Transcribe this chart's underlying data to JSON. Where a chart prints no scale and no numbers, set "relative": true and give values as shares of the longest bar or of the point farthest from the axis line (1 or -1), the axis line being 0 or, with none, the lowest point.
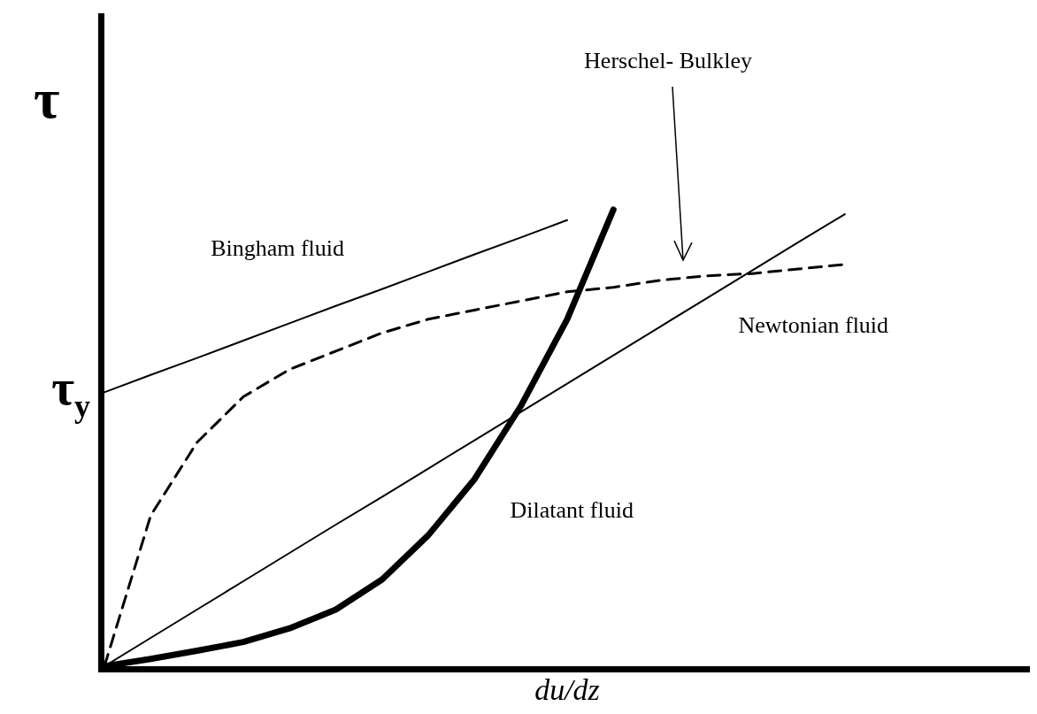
{
  "chart_data": {
    "type": "line",
    "relative": true,
    "xlabel": "du/dz",
    "ylabel": "τ",
    "tick_labels": false,
    "marker": "none",
    "annotations": [
      "τ$_{y}$"
    ],
    "categories": [
      null,
      null,
      null,
      null,
      null,
      null,
      null,
      null,
      null,
      null,
      null,
      null,
      null,
      null,
      null,
      null,
      null,
      null,
      null,
      null,
      null
    ],
    "series": [
      {
        "name": "Bingham fluid",
        "color": "#000000",
        "line_style": "solid",
        "values": [
          0.6,
          0.638,
          0.675,
          0.713,
          0.751,
          0.789,
          0.826,
          0.864,
          0.902,
          0.939,
          0.977,
          null,
          null,
          null,
          null,
          null,
          null,
          null,
          null,
          null,
          null
        ]
      },
      {
        "name": "Newtonian fluid",
        "color": "#000000",
        "line_style": "solid",
        "values": [
          0,
          0.062,
          0.124,
          0.186,
          0.248,
          0.31,
          0.371,
          0.433,
          0.495,
          0.557,
          0.619,
          0.681,
          0.743,
          0.805,
          0.867,
          0.929,
          0.99,
          null,
          null,
          null,
          null
        ]
      },
      {
        "name": "Dilatant fluid",
        "color": "#000000",
        "line_style": "solid",
        "values": [
          0,
          0.016,
          0.034,
          0.053,
          0.083,
          0.124,
          0.19,
          0.287,
          0.41,
          0.57,
          0.76,
          1.0,
          null,
          null,
          null,
          null,
          null,
          null,
          null,
          null,
          null
        ]
      },
      {
        "name": "Herschel- Bulkley",
        "color": "#000000",
        "line_style": "dashed",
        "values": [
          0,
          0.33,
          0.49,
          0.59,
          0.65,
          0.69,
          0.73,
          0.76,
          0.78,
          0.8,
          0.82,
          0.83,
          0.845,
          0.855,
          0.86,
          0.87,
          0.88,
          null,
          null,
          null,
          null
        ]
      }
    ]
  }
}
